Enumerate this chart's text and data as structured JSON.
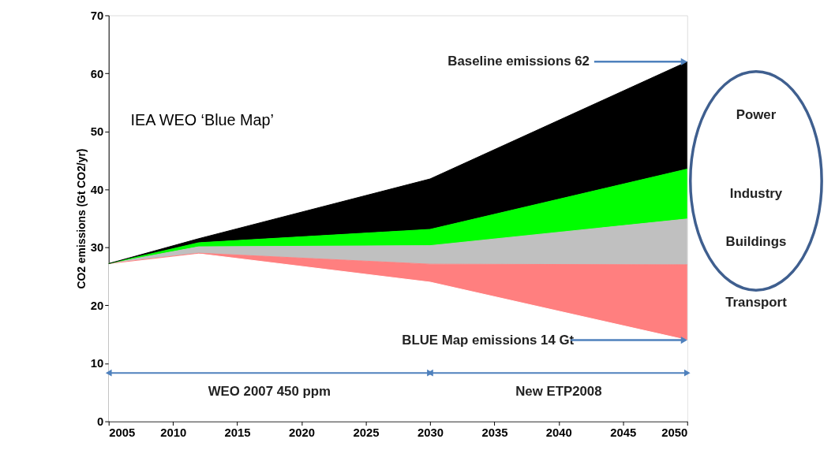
{
  "chart_data": {
    "type": "area",
    "stacked": true,
    "x": [
      2005,
      2012,
      2030,
      2050
    ],
    "series": [
      {
        "color": "#ffffff",
        "values": [
          27.2,
          28.9,
          24,
          14
        ]
      },
      {
        "name": "Transport",
        "color": "#ff7f7f",
        "values": [
          0,
          0.1,
          3.1,
          13
        ]
      },
      {
        "name": "Buildings",
        "color": "#c0c0c0",
        "values": [
          0,
          1.1,
          3.2,
          7.9
        ]
      },
      {
        "name": "Industry",
        "color": "#00ff00",
        "values": [
          0,
          0.7,
          2.8,
          8.6
        ]
      },
      {
        "name": "Power",
        "color": "#000000",
        "values": [
          0,
          0.7,
          8.7,
          18.5
        ]
      }
    ],
    "ylabel": "CO2 emissions (Gt CO2/yr)",
    "xlim": [
      2005,
      2050
    ],
    "xticks": [
      2005,
      2010,
      2015,
      2020,
      2025,
      2030,
      2035,
      2040,
      2045,
      2050
    ],
    "ylim": [
      0,
      70
    ],
    "yticks": [
      0,
      10,
      20,
      30,
      40,
      50,
      60,
      70
    ],
    "grid": false,
    "legend": "right",
    "annotations": [
      {
        "text": "Baseline emissions 62",
        "x": 2050,
        "y": 62
      },
      {
        "text": "BLUE Map emissions 14 Gt",
        "x": 2050,
        "y": 14
      },
      "IEA WEO ‘Blue Map’",
      "WEO 2007 450 ppm",
      "New ETP2008"
    ]
  }
}
